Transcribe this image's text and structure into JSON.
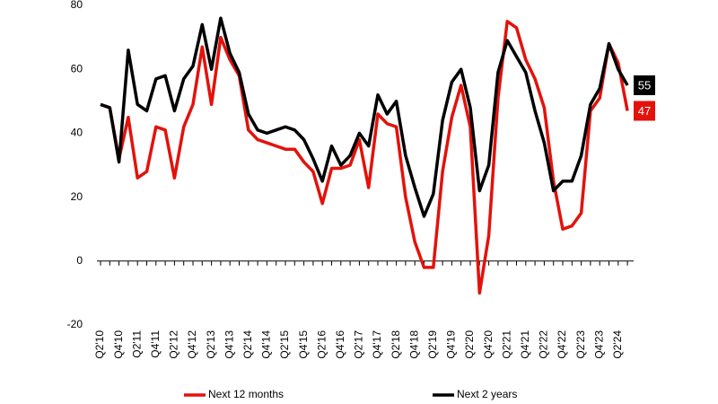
{
  "chart_data": {
    "type": "line",
    "categories": [
      "Q2'10",
      null,
      "Q4'10",
      null,
      "Q2'11",
      null,
      "Q4'11",
      null,
      "Q2'12",
      null,
      "Q4'12",
      null,
      "Q2'13",
      null,
      "Q4'13",
      null,
      "Q2'14",
      null,
      "Q4'14",
      null,
      "Q2'15",
      null,
      "Q4'15",
      null,
      "Q2'16",
      null,
      "Q4'16",
      null,
      "Q2'17",
      null,
      "Q4'17",
      null,
      "Q2'18",
      null,
      "Q4'18",
      null,
      "Q2'19",
      null,
      "Q4'19",
      null,
      "Q2'20",
      null,
      "Q4'20",
      null,
      "Q2'21",
      null,
      "Q4'21",
      null,
      "Q2'22",
      null,
      "Q4'22",
      null,
      "Q2'23",
      null,
      "Q4'23",
      null,
      "Q2'24",
      null
    ],
    "series": [
      {
        "name": "Next 12 months",
        "color": "#e3120b",
        "values": [
          49,
          48,
          32,
          45,
          26,
          28,
          42,
          41,
          26,
          42,
          49,
          67,
          49,
          70,
          63,
          58,
          41,
          38,
          37,
          36,
          35,
          35,
          31,
          28,
          18,
          29,
          29,
          30,
          38,
          23,
          46,
          43,
          42,
          20,
          6,
          -2,
          -2,
          28,
          45,
          55,
          42,
          -10,
          8,
          51,
          75,
          73,
          63,
          57,
          48,
          25,
          10,
          11,
          15,
          47,
          51,
          68,
          62,
          47
        ]
      },
      {
        "name": "Next 2 years",
        "color": "#000000",
        "values": [
          49,
          48,
          31,
          66,
          49,
          47,
          57,
          58,
          47,
          57,
          61,
          74,
          60,
          76,
          65,
          59,
          46,
          41,
          40,
          41,
          42,
          41,
          38,
          32,
          25,
          36,
          30,
          33,
          40,
          36,
          52,
          46,
          50,
          33,
          23,
          14,
          21,
          44,
          56,
          60,
          48,
          22,
          30,
          59,
          69,
          64,
          59,
          47,
          37,
          22,
          25,
          25,
          33,
          49,
          54,
          68,
          60,
          55
        ]
      }
    ],
    "ylim": [
      -20,
      80
    ],
    "yticks": [
      -20,
      0,
      20,
      40,
      60,
      80
    ],
    "grid": false,
    "legend": "bottom"
  }
}
